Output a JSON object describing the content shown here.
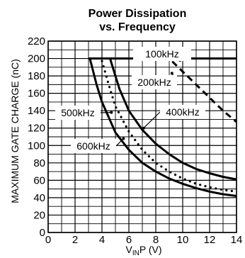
{
  "chart_data": {
    "type": "line",
    "title_line1": "Power Dissipation",
    "title_line2": "vs. Frequency",
    "ylabel": "MAXIMUM GATE CHARGE (nC)",
    "xlabel": {
      "main": "V",
      "sub": "IN",
      "rest": "P (V)"
    },
    "xlim": [
      0,
      14
    ],
    "ylim": [
      0,
      220
    ],
    "grid": true,
    "xticks": [
      "0",
      "2",
      "4",
      "6",
      "8",
      "10",
      "12",
      "14"
    ],
    "yticks": [
      "0",
      "20",
      "40",
      "60",
      "80",
      "100",
      "120",
      "140",
      "160",
      "180",
      "200",
      "220"
    ],
    "series": [
      {
        "name": "100kHz",
        "style": "dashed",
        "points": [
          [
            3,
            200
          ],
          [
            9,
            200
          ],
          [
            10,
            185
          ],
          [
            11,
            170
          ],
          [
            12,
            155
          ],
          [
            13,
            140
          ],
          [
            14,
            127
          ]
        ]
      },
      {
        "name": "200kHz",
        "style": "solid",
        "points": [
          [
            3,
            200
          ],
          [
            14,
            200
          ]
        ]
      },
      {
        "name": "400kHz",
        "style": "solid",
        "points": [
          [
            4.6,
            200
          ],
          [
            5.3,
            165
          ],
          [
            6,
            140
          ],
          [
            7,
            118
          ],
          [
            8,
            102
          ],
          [
            9,
            90
          ],
          [
            10,
            80
          ],
          [
            11,
            73
          ],
          [
            12,
            68
          ],
          [
            13,
            64
          ],
          [
            14,
            61
          ]
        ]
      },
      {
        "name": "500kHz",
        "style": "dotted",
        "points": [
          [
            4,
            197
          ],
          [
            4.5,
            170
          ],
          [
            5,
            145
          ],
          [
            6,
            116
          ],
          [
            7,
            95
          ],
          [
            8,
            80
          ],
          [
            9,
            70
          ],
          [
            10,
            62
          ],
          [
            11,
            56
          ],
          [
            12,
            52
          ],
          [
            13,
            49
          ],
          [
            14,
            47
          ]
        ]
      },
      {
        "name": "600kHz",
        "style": "solid",
        "points": [
          [
            3.1,
            200
          ],
          [
            3.6,
            170
          ],
          [
            4,
            150
          ],
          [
            5,
            115
          ],
          [
            6,
            95
          ],
          [
            7,
            80
          ],
          [
            8,
            70
          ],
          [
            9,
            62
          ],
          [
            10,
            56
          ],
          [
            11,
            51
          ],
          [
            12,
            47
          ],
          [
            13,
            44
          ],
          [
            14,
            42
          ]
        ]
      }
    ],
    "annotations": [
      {
        "text": "100kHz",
        "series": "100kHz",
        "at": [
          9.8,
          198
        ]
      },
      {
        "text": "200kHz",
        "series": "200kHz",
        "at": [
          9.2,
          183
        ]
      },
      {
        "text": "400kHz",
        "series": "400kHz",
        "at": [
          7.1,
          120
        ]
      },
      {
        "text": "500kHz",
        "series": "500kHz",
        "at": [
          4.7,
          138
        ]
      },
      {
        "text": "600kHz",
        "series": "600kHz",
        "at": [
          5.6,
          108
        ]
      }
    ]
  }
}
